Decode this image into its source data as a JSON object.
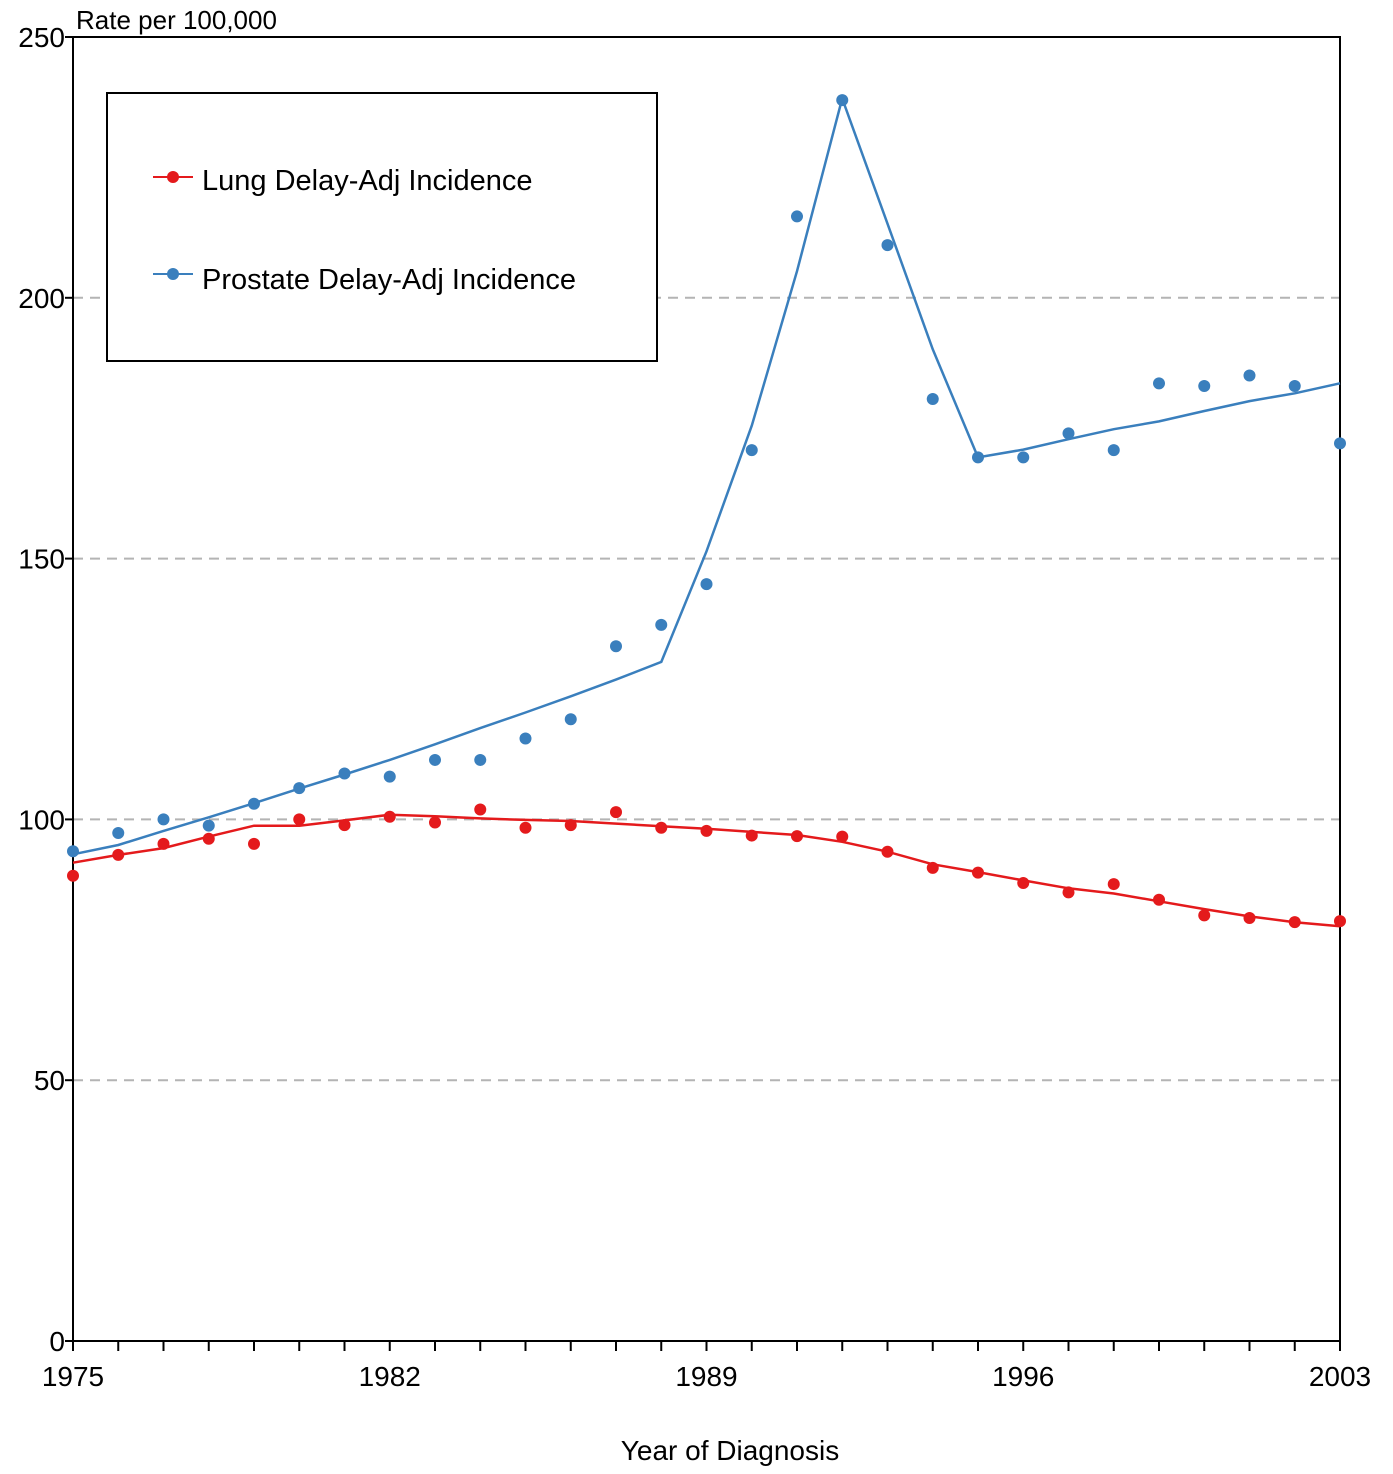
{
  "colors": {
    "lung": "#e41a1c",
    "prostate": "#3a7fbd",
    "grid": "#b4b4b4",
    "axis": "#000000"
  },
  "chart_data": {
    "type": "line",
    "ylabel": "Rate per 100,000",
    "xlabel": "Year of Diagnosis",
    "xlim": [
      1975,
      2003
    ],
    "ylim": [
      0,
      250
    ],
    "x_ticks_labeled": [
      1975,
      1982,
      1989,
      1996,
      2003
    ],
    "y_ticks": [
      0,
      50,
      100,
      150,
      200,
      250
    ],
    "grid": "horizontal dashed at 50, 100, 150, 200",
    "legend_position": "top-left",
    "x": [
      1975,
      1976,
      1977,
      1978,
      1979,
      1980,
      1981,
      1982,
      1983,
      1984,
      1985,
      1986,
      1987,
      1988,
      1989,
      1990,
      1991,
      1992,
      1993,
      1994,
      1995,
      1996,
      1997,
      1998,
      1999,
      2000,
      2001,
      2002,
      2003
    ],
    "series": [
      {
        "name": "Lung Delay-Adj Incidence",
        "color_key": "lung",
        "observed": [
          89.2,
          93.2,
          95.3,
          96.3,
          95.3,
          100,
          98.9,
          100.5,
          99.4,
          101.9,
          98.4,
          98.9,
          101.4,
          98.4,
          97.8,
          96.9,
          96.8,
          96.7,
          93.8,
          90.7,
          89.8,
          87.8,
          86,
          87.6,
          84.6,
          81.6,
          81.1,
          80.3,
          80.5
        ],
        "fit": [
          91.7,
          93.2,
          94.5,
          96.7,
          98.8,
          98.8,
          99.8,
          100.9,
          100.6,
          100.2,
          99.9,
          99.7,
          99.2,
          98.7,
          98.2,
          97.6,
          97,
          95.7,
          93.8,
          91.4,
          89.9,
          88.3,
          86.8,
          85.8,
          84.3,
          82.8,
          81.4,
          80.3,
          79.5
        ]
      },
      {
        "name": "Prostate Delay-Adj Incidence",
        "color_key": "prostate",
        "observed": [
          93.9,
          97.4,
          100,
          98.8,
          103,
          106,
          108.8,
          108.2,
          111.4,
          111.4,
          115.5,
          119.2,
          133.2,
          137.3,
          145.1,
          170.8,
          215.6,
          237.9,
          210.1,
          180.6,
          169.4,
          169.4,
          174,
          170.8,
          183.6,
          183.1,
          185.1,
          183.1,
          172.1
        ],
        "fit": [
          93.3,
          95.1,
          97.8,
          100.4,
          103.1,
          105.9,
          108.6,
          111.4,
          114.4,
          117.5,
          120.5,
          123.6,
          126.8,
          130.2,
          151.4,
          175.5,
          205.1,
          238.2,
          214.2,
          190.1,
          169.4,
          170.9,
          172.9,
          174.8,
          176.3,
          178.3,
          180.2,
          181.7,
          183.6
        ]
      }
    ]
  }
}
